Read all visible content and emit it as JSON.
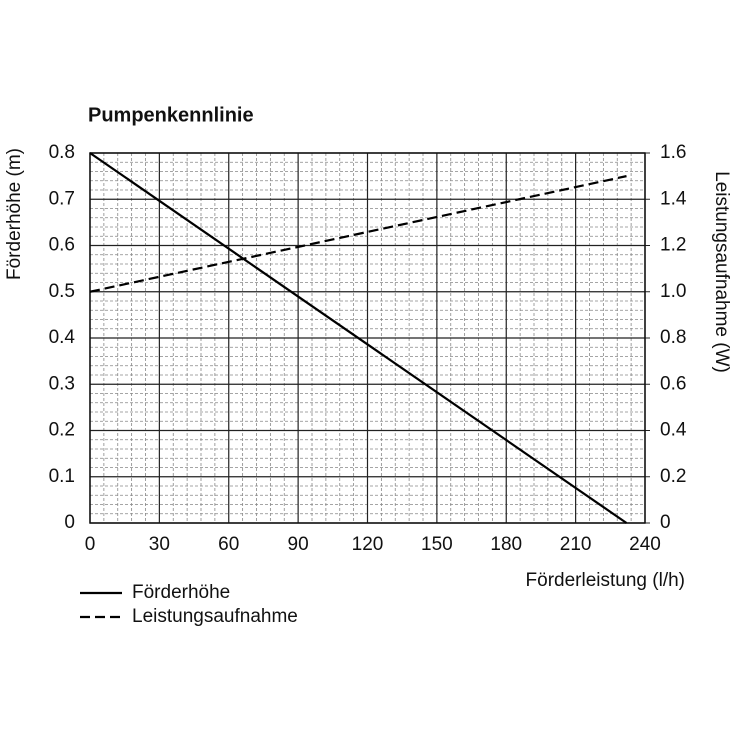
{
  "chart_data": {
    "type": "line",
    "title": "Pumpenkennlinie",
    "x_label": "Förderleistung (l/h)",
    "y_label": "Förderhöhe (m)",
    "y2_label": "Leistungsaufnahme (W)",
    "x": [
      0,
      232
    ],
    "series": [
      {
        "name": "Förderhöhe",
        "color": "#000000",
        "style": "solid",
        "values": [
          0.8,
          0
        ]
      },
      {
        "name": "Leistungsaufnahme",
        "color": "#000000",
        "style": "dashed",
        "axis": "y2",
        "values": [
          1.0,
          1.5
        ]
      }
    ],
    "xlim": [
      0,
      240
    ],
    "xticks": [
      0,
      30,
      60,
      90,
      120,
      150,
      180,
      210,
      240
    ],
    "ylim": [
      0,
      0.8
    ],
    "yticks": [
      0,
      0.1,
      0.2,
      0.3,
      0.4,
      0.5,
      0.6,
      0.7,
      0.8
    ],
    "y2lim": [
      0,
      1.6
    ],
    "y2ticks": [
      0,
      0.2,
      0.4,
      0.6,
      0.8,
      {
        "value": 1,
        "label": "1.0"
      },
      1.2,
      1.4,
      1.6
    ],
    "grid": true
  }
}
